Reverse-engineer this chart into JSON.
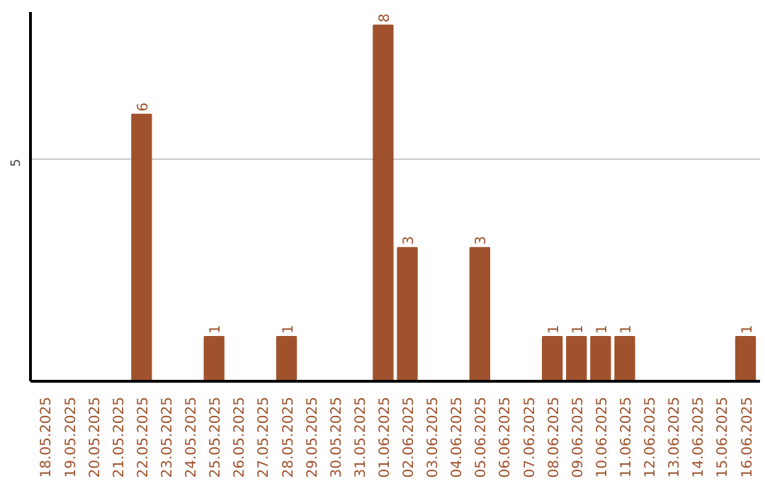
{
  "chart_data": {
    "type": "bar",
    "categories": [
      "18.05.2025",
      "19.05.2025",
      "20.05.2025",
      "21.05.2025",
      "22.05.2025",
      "23.05.2025",
      "24.05.2025",
      "25.05.2025",
      "26.05.2025",
      "27.05.2025",
      "28.05.2025",
      "29.05.2025",
      "30.05.2025",
      "31.05.2025",
      "01.06.2025",
      "02.06.2025",
      "03.06.2025",
      "04.06.2025",
      "05.06.2025",
      "06.06.2025",
      "07.06.2025",
      "08.06.2025",
      "09.06.2025",
      "10.06.2025",
      "11.06.2025",
      "12.06.2025",
      "13.06.2025",
      "14.06.2025",
      "15.06.2025",
      "16.06.2025"
    ],
    "values": [
      0,
      0,
      0,
      0,
      6,
      0,
      0,
      1,
      0,
      0,
      1,
      0,
      0,
      0,
      8,
      3,
      0,
      0,
      3,
      0,
      0,
      1,
      1,
      1,
      1,
      0,
      0,
      0,
      0,
      1
    ],
    "value_labels": [
      null,
      null,
      null,
      null,
      "6",
      null,
      null,
      "1",
      null,
      null,
      "1",
      null,
      null,
      null,
      "8",
      "3",
      null,
      null,
      "3",
      null,
      null,
      "1",
      "1",
      "1",
      "1",
      null,
      null,
      null,
      null,
      "1"
    ],
    "color": "#a0522d",
    "ylim": [
      0,
      8.3
    ],
    "yticks": [
      5
    ],
    "grid": "y"
  }
}
